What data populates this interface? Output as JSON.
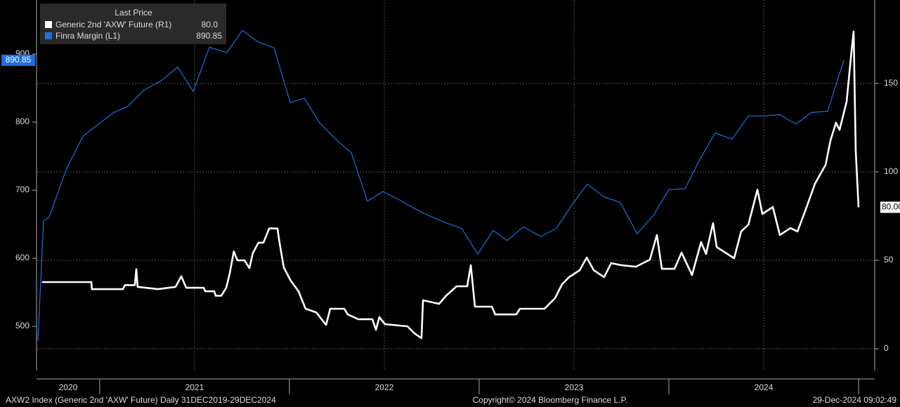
{
  "chart_data": {
    "type": "line",
    "legend_title": "Last Price",
    "years": [
      "2020",
      "2021",
      "2022",
      "2023",
      "2024"
    ],
    "xlim": [
      2020.667,
      2025.085
    ],
    "ylim": [
      435.1,
      979.4
    ],
    "yticks": [
      500,
      600,
      700,
      800,
      900
    ],
    "y2lim": [
      -12.3,
      197.2
    ],
    "y2ticks": [
      0,
      50,
      100,
      150
    ],
    "grid": true,
    "series": [
      {
        "name": "Generic 2nd 'AXW' Future  (R1)",
        "color": "#ffffff",
        "axis": "y2",
        "legend_value_label": "80.0",
        "tag_label": "80.00",
        "x": [
          2020.696,
          2020.956,
          2020.959,
          2021.122,
          2021.133,
          2021.185,
          2021.193,
          2021.2,
          2021.307,
          2021.4,
          2021.43,
          2021.456,
          2021.548,
          2021.556,
          2021.604,
          2021.611,
          2021.641,
          2021.667,
          2021.685,
          2021.707,
          2021.726,
          2021.763,
          2021.789,
          2021.807,
          2021.837,
          2021.863,
          2021.893,
          2021.937,
          2021.948,
          2021.97,
          2022.007,
          2022.048,
          2022.085,
          2022.141,
          2022.193,
          2022.215,
          2022.289,
          2022.307,
          2022.363,
          2022.437,
          2022.456,
          2022.474,
          2022.504,
          2022.622,
          2022.659,
          2022.696,
          2022.704,
          2022.789,
          2022.826,
          2022.881,
          2022.937,
          2022.956,
          2022.978,
          2023.067,
          2023.085,
          2023.196,
          2023.215,
          2023.344,
          2023.4,
          2023.437,
          2023.474,
          2023.53,
          2023.567,
          2023.604,
          2023.659,
          2023.696,
          2023.752,
          2023.826,
          2023.9,
          2023.937,
          2023.963,
          2024.03,
          2024.067,
          2024.122,
          2024.17,
          2024.196,
          2024.233,
          2024.252,
          2024.344,
          2024.381,
          2024.419,
          2024.467,
          2024.493,
          2024.548,
          2024.585,
          2024.641,
          2024.678,
          2024.726,
          2024.77,
          2024.826,
          2024.852,
          2024.881,
          2024.9,
          2024.937,
          2024.963,
          2024.974,
          2024.985,
          2025.0
        ],
        "values": [
          37.7,
          37.7,
          33.7,
          33.7,
          36,
          36,
          45,
          35,
          33.7,
          35,
          41,
          34.5,
          34.5,
          32.5,
          32.5,
          30,
          30,
          34.5,
          42.5,
          55,
          50,
          50,
          45.6,
          54,
          60,
          60,
          68,
          68,
          60,
          46,
          38.5,
          32.5,
          22.6,
          20.6,
          13.5,
          22.6,
          22.6,
          19.4,
          16.7,
          16.7,
          10.7,
          17.9,
          13.9,
          12.7,
          8.7,
          6,
          27.4,
          25.4,
          30,
          35.3,
          35.3,
          47.2,
          23.8,
          23.8,
          19.4,
          19.4,
          22.6,
          22.6,
          28.6,
          36.5,
          40.5,
          44.4,
          51.6,
          44.4,
          40.5,
          48.4,
          47.2,
          46.4,
          50.4,
          64.3,
          45.2,
          45.2,
          54.4,
          41.7,
          60.3,
          53.6,
          71,
          57.5,
          51.2,
          66.3,
          70.2,
          90,
          76.2,
          80.2,
          64.3,
          68.3,
          66.3,
          80.2,
          93.3,
          104,
          117.9,
          127.8,
          123.8,
          139.7,
          168.7,
          179.4,
          111.9,
          80
        ]
      },
      {
        "name": "Finra Margin  (L1)",
        "color": "#1e6fe0",
        "axis": "y",
        "x": [
          2020.674,
          2020.704,
          2020.733,
          2020.826,
          2020.911,
          2020.993,
          2021.074,
          2021.148,
          2021.233,
          2021.326,
          2021.411,
          2021.493,
          2021.578,
          2021.67,
          2021.752,
          2021.833,
          2021.919,
          2022.004,
          2022.078,
          2022.159,
          2022.244,
          2022.326,
          2022.411,
          2022.493,
          2022.578,
          2022.659,
          2022.741,
          2022.826,
          2022.907,
          2022.993,
          2023.074,
          2023.148,
          2023.233,
          2023.326,
          2023.407,
          2023.493,
          2023.57,
          2023.659,
          2023.744,
          2023.833,
          2023.919,
          2024.0,
          2024.085,
          2024.167,
          2024.244,
          2024.333,
          2024.419,
          2024.504,
          2024.585,
          2024.67,
          2024.752,
          2024.837,
          2024.922
        ],
        "values": [
          479,
          655,
          660,
          732,
          779,
          797,
          814,
          823,
          847,
          861,
          881,
          845,
          910,
          902,
          935,
          918,
          909,
          829,
          835,
          799,
          775,
          755,
          684,
          698,
          686,
          673,
          662,
          652,
          644,
          606,
          641,
          626,
          646,
          632,
          644,
          680,
          709,
          690,
          682,
          636,
          663,
          701,
          702,
          747,
          784,
          775,
          809,
          809,
          811,
          797,
          814,
          816,
          890.85
        ]
      }
    ],
    "footer_left": "AXW2 Index (Generic 2nd 'AXW' Future)  Daily 31DEC2019-29DEC2024",
    "footer_center": "Copyright© 2024 Bloomberg Finance L.P.",
    "footer_right": "29-Dec-2024 09:02:49"
  }
}
